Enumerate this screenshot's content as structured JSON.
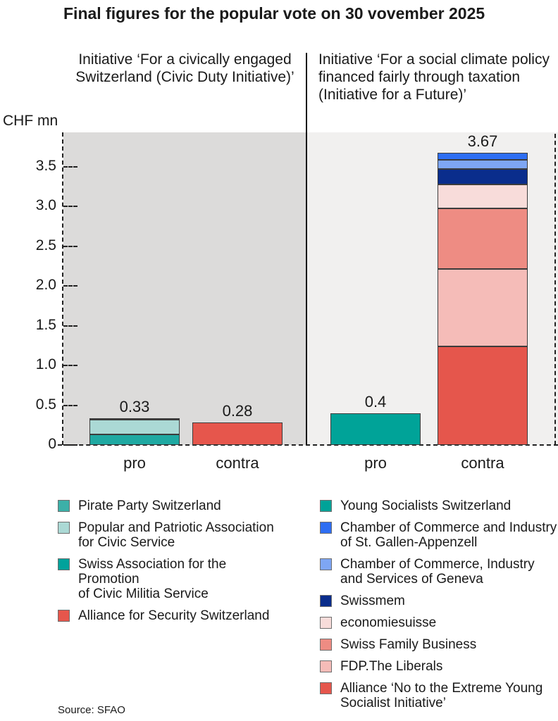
{
  "title": "Final figures for the popular vote on 30 vovember 2025",
  "axis": {
    "unit_label": "CHF mn",
    "ticks": [
      "3.5",
      "3.0",
      "2.5",
      "2.0",
      "1.5",
      "1.0",
      "0.5",
      "0"
    ]
  },
  "chart_data": {
    "type": "bar",
    "subtype": "stacked-bar, two panels",
    "ylabel": "CHF mn",
    "ylim": [
      0,
      3.93
    ],
    "grid": "dashed axis frame, no inner gridlines",
    "panels": [
      {
        "title_lines": [
          "Initiative ‘For a civically engaged",
          "Switzerland (Civic Duty Initiative)’"
        ],
        "background": "#dcdbda",
        "categories": [
          "pro",
          "contra"
        ],
        "bars": [
          {
            "category": "pro",
            "total": 0.33,
            "label": "0.33",
            "segments": [
              {
                "name": "Pirate Party Switzerland",
                "value": 0.135,
                "color": "#1fa9a2"
              },
              {
                "name": "Popular and Patriotic Association for Civic Service",
                "value": 0.18,
                "color": "#abd9d5"
              },
              {
                "name": "Swiss Association for the Promotion of Civic Militia Service",
                "value": 0.015,
                "color": "#00837e"
              }
            ]
          },
          {
            "category": "contra",
            "total": 0.28,
            "label": "0.28",
            "segments": [
              {
                "name": "Alliance for Security Switzerland",
                "value": 0.28,
                "color": "#e6564c"
              }
            ]
          }
        ]
      },
      {
        "title_lines": [
          "Initiative ‘For a social climate policy",
          "financed fairly through taxation",
          "(Initiative for a Future)’"
        ],
        "background": "#f1f0ef",
        "categories": [
          "pro",
          "contra"
        ],
        "bars": [
          {
            "category": "pro",
            "total": 0.4,
            "label": "0.4",
            "segments": [
              {
                "name": "Young Socialists Switzerland",
                "value": 0.4,
                "color": "#00a398"
              }
            ]
          },
          {
            "category": "contra",
            "total": 3.67,
            "label": "3.67",
            "segments": [
              {
                "name": "Alliance ‘No to the Extreme Young Socialist Initiative’",
                "value": 1.24,
                "color": "#e5564c"
              },
              {
                "name": "FDP.The Liberals",
                "value": 0.97,
                "color": "#f5bcb8"
              },
              {
                "name": "Swiss Family Business",
                "value": 0.76,
                "color": "#ee8c83"
              },
              {
                "name": "economiesuisse",
                "value": 0.3,
                "color": "#f8dcda"
              },
              {
                "name": "Swissmem",
                "value": 0.2,
                "color": "#0a2d8c"
              },
              {
                "name": "Chamber of Commerce, Industry and Services of Geneva",
                "value": 0.11,
                "color": "#7ea6f4"
              },
              {
                "name": "Chamber of Commerce and Industry of St. Gallen-Appenzell",
                "value": 0.09,
                "color": "#2e6ef3"
              }
            ]
          }
        ]
      }
    ]
  },
  "legend": {
    "columns": [
      {
        "items": [
          {
            "color": "#3cb0a8",
            "lines": [
              "Pirate Party Switzerland"
            ]
          },
          {
            "color": "#abd9d5",
            "lines": [
              "Popular and Patriotic Association",
              "for Civic Service"
            ]
          },
          {
            "color": "#00a29b",
            "lines": [
              "Swiss Association for the Promotion",
              "of Civic Militia Service"
            ]
          },
          {
            "color": "#e6564c",
            "lines": [
              "Alliance for Security Switzerland"
            ]
          }
        ]
      },
      {
        "items": [
          {
            "color": "#00a398",
            "lines": [
              "Young Socialists Switzerland"
            ]
          },
          {
            "color": "#2e6ef3",
            "lines": [
              "Chamber of Commerce and Industry",
              "of St. Gallen-Appenzell"
            ]
          },
          {
            "color": "#7ea6f4",
            "lines": [
              "Chamber of Commerce, Industry",
              "and Services of Geneva"
            ]
          },
          {
            "color": "#0a2d8c",
            "lines": [
              "Swissmem"
            ]
          },
          {
            "color": "#f8dcda",
            "lines": [
              "economiesuisse"
            ]
          },
          {
            "color": "#ee8c83",
            "lines": [
              "Swiss Family Business"
            ]
          },
          {
            "color": "#f5bcb8",
            "lines": [
              "FDP.The Liberals"
            ]
          },
          {
            "color": "#e5564c",
            "lines": [
              "Alliance ‘No to the Extreme Young",
              "Socialist Initiative’"
            ]
          }
        ]
      }
    ]
  },
  "source": "Source: SFAO"
}
